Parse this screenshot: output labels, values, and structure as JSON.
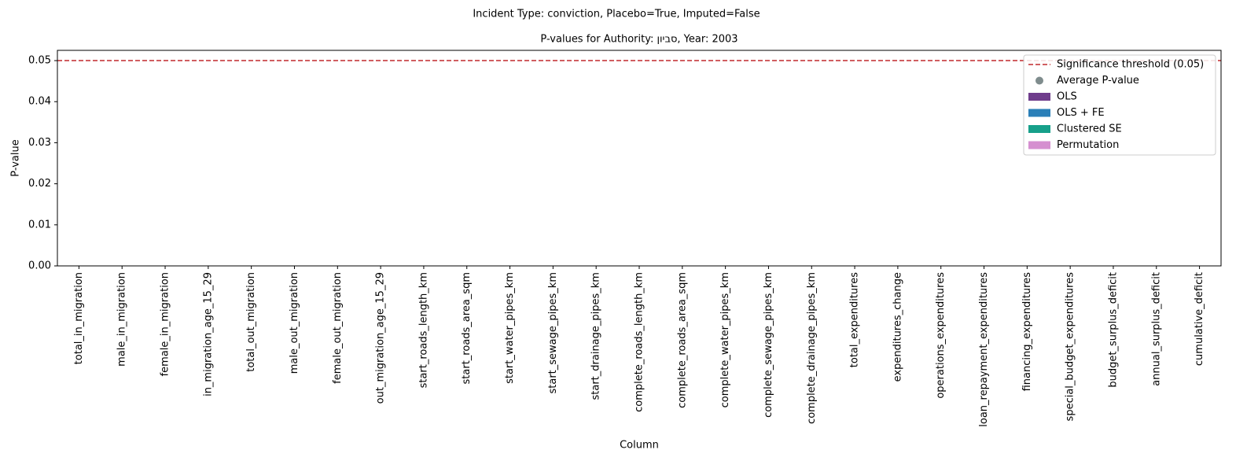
{
  "chart_data": {
    "type": "bar",
    "suptitle": "Incident Type: conviction, Placebo=True, Imputed=False",
    "title": "P-values for Authority: סביון, Year: 2003",
    "xlabel": "Column",
    "ylabel": "P-value",
    "categories": [
      "total_in_migration",
      "male_in_migration",
      "female_in_migration",
      "in_migration_age_15_29",
      "total_out_migration",
      "male_out_migration",
      "female_out_migration",
      "out_migration_age_15_29",
      "start_roads_length_km",
      "start_roads_area_sqm",
      "start_water_pipes_km",
      "start_sewage_pipes_km",
      "start_drainage_pipes_km",
      "complete_roads_length_km",
      "complete_roads_area_sqm",
      "complete_water_pipes_km",
      "complete_sewage_pipes_km",
      "complete_drainage_pipes_km",
      "total_expenditures",
      "expenditures_change",
      "operations_expenditures",
      "loan_repayment_expenditures",
      "financing_expenditures",
      "special_budget_expenditures",
      "budget_surplus_deficit",
      "annual_surplus_deficit",
      "cumulative_deficit"
    ],
    "series": [
      {
        "name": "OLS",
        "color": "#6f3d8c",
        "values": [
          null,
          null,
          null,
          null,
          null,
          null,
          null,
          null,
          null,
          null,
          null,
          null,
          null,
          null,
          null,
          null,
          null,
          null,
          null,
          null,
          null,
          null,
          null,
          null,
          null,
          null,
          null
        ]
      },
      {
        "name": "OLS + FE",
        "color": "#2a7fb8",
        "values": [
          null,
          null,
          null,
          null,
          null,
          null,
          null,
          null,
          null,
          null,
          null,
          null,
          null,
          null,
          null,
          null,
          null,
          null,
          null,
          null,
          null,
          null,
          null,
          null,
          null,
          null,
          null
        ]
      },
      {
        "name": "Clustered SE",
        "color": "#17a08a",
        "values": [
          null,
          null,
          null,
          null,
          null,
          null,
          null,
          null,
          null,
          null,
          null,
          null,
          null,
          null,
          null,
          null,
          null,
          null,
          null,
          null,
          null,
          null,
          null,
          null,
          null,
          null,
          null
        ]
      },
      {
        "name": "Permutation",
        "color": "#d58fd0",
        "values": [
          null,
          null,
          null,
          null,
          null,
          null,
          null,
          null,
          null,
          null,
          null,
          null,
          null,
          null,
          null,
          null,
          null,
          null,
          null,
          null,
          null,
          null,
          null,
          null,
          null,
          null,
          null
        ]
      }
    ],
    "average": {
      "name": "Average P-value",
      "color": "#7f8c8d",
      "values": [
        null,
        null,
        null,
        null,
        null,
        null,
        null,
        null,
        null,
        null,
        null,
        null,
        null,
        null,
        null,
        null,
        null,
        null,
        null,
        null,
        null,
        null,
        null,
        null,
        null,
        null,
        null
      ]
    },
    "threshold": {
      "name": "Significance threshold (0.05)",
      "value": 0.05,
      "color": "#c0282d"
    },
    "ylim": [
      0,
      0.0525
    ],
    "yticks": [
      {
        "value": 0,
        "label": "0.00"
      },
      {
        "value": 0.01,
        "label": "0.01"
      },
      {
        "value": 0.02,
        "label": "0.02"
      },
      {
        "value": 0.03,
        "label": "0.03"
      },
      {
        "value": 0.04,
        "label": "0.04"
      },
      {
        "value": 0.05,
        "label": "0.05"
      }
    ],
    "legend": "upper right"
  }
}
